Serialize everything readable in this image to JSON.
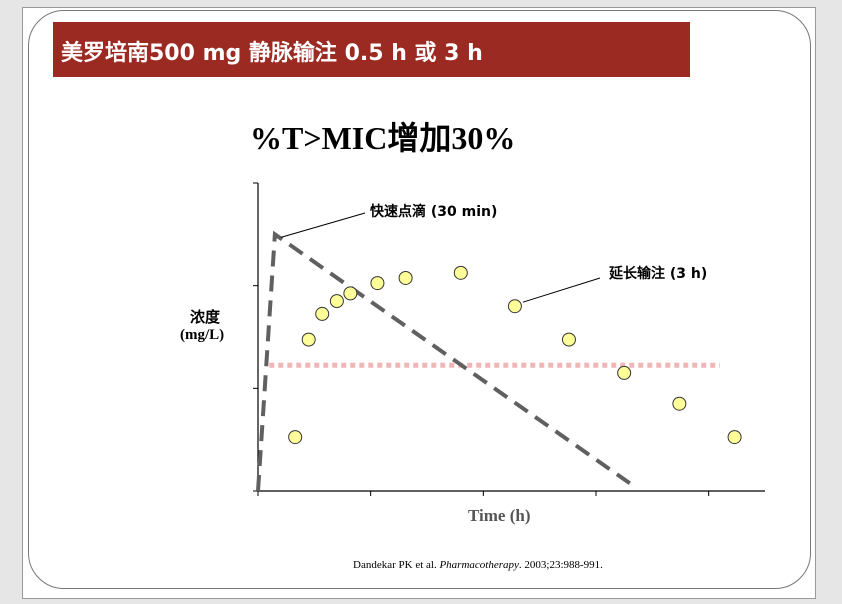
{
  "slide": {
    "banner_title": "美罗培南500 mg 静脉输注 0.5 h 或 3 h",
    "chart_title": "%T>MIC增加30%",
    "citation_pre": "Dandekar PK et al. ",
    "citation_journal": "Pharmacotherapy",
    "citation_post": ". 2003;23:988-991."
  },
  "colors": {
    "banner_bg": "#9b2a22",
    "banner_text": "#ffffff",
    "dashed_line": "#606060",
    "point_fill": "#ffff99",
    "mic_line": "#e06060"
  },
  "chart_data": {
    "type": "line+scatter",
    "ylabel_line1": "浓度",
    "ylabel_line2": "(mg/L)",
    "xlabel": "Time (h)",
    "xlim": [
      0,
      4.5
    ],
    "ylim": [
      0,
      6
    ],
    "x_ticks": [
      0,
      1,
      2,
      3,
      4
    ],
    "y_ticks": [
      0,
      2,
      4,
      6
    ],
    "tick_labels_shown": false,
    "grid": false,
    "series": [
      {
        "style": "dashed-line",
        "x": [
          0,
          0.15,
          3.3
        ],
        "y": [
          0,
          5.0,
          0.15
        ]
      },
      {
        "style": "markers",
        "x": [
          0.33,
          0.45,
          0.57,
          0.7,
          0.82,
          1.06,
          1.31,
          1.8,
          2.28,
          2.76,
          3.25,
          3.74,
          4.23
        ],
        "y": [
          1.05,
          2.95,
          3.45,
          3.7,
          3.85,
          4.05,
          4.15,
          4.25,
          3.6,
          2.95,
          2.3,
          1.7,
          1.05
        ]
      },
      {
        "style": "dotted-threshold",
        "x": [
          0.1,
          4.1
        ],
        "y": [
          2.45,
          2.45
        ]
      }
    ],
    "annotations": {
      "fast": "快速点滴 (30 min)",
      "extended": "延长输注 (3 h)"
    }
  }
}
